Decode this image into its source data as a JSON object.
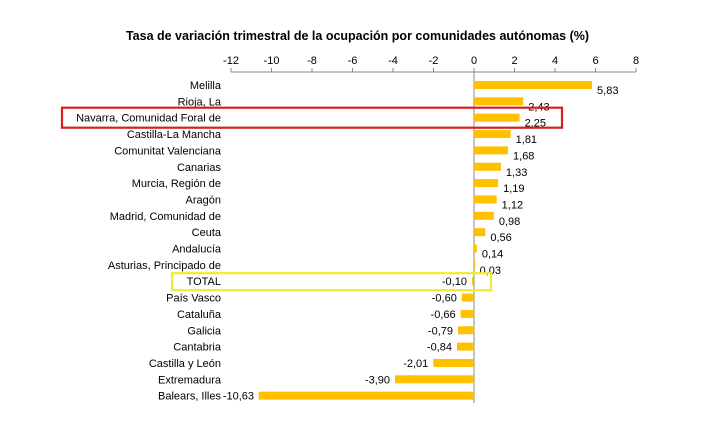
{
  "chart_data": {
    "type": "bar",
    "orientation": "horizontal",
    "title": "Tasa de variación trimestral de la ocupación por comunidades autónomas (%)",
    "xlabel": "",
    "ylabel": "",
    "xlim": [
      -12,
      8
    ],
    "x_ticks": [
      "-12",
      "-10",
      "-8",
      "-6",
      "-4",
      "-2",
      "0",
      "2",
      "4",
      "6",
      "8"
    ],
    "x_axis_position": "top",
    "grid": false,
    "legend": "none",
    "bar_color": "#FFC000",
    "categories": [
      "Melilla",
      "Rioja, La",
      "Navarra, Comunidad Foral de",
      "Castilla-La Mancha",
      "Comunitat Valenciana",
      "Canarias",
      "Murcia, Región de",
      "Aragón",
      "Madrid, Comunidad de",
      "Ceuta",
      "Andalucía",
      "Asturias, Principado de",
      "TOTAL",
      "País Vasco",
      "Cataluña",
      "Galicia",
      "Cantabria",
      "Castilla y León",
      "Extremadura",
      "Balears, Illes"
    ],
    "values": [
      5.83,
      2.43,
      2.25,
      1.81,
      1.68,
      1.33,
      1.19,
      1.12,
      0.98,
      0.56,
      0.14,
      0.03,
      -0.1,
      -0.6,
      -0.66,
      -0.79,
      -0.84,
      -2.01,
      -3.9,
      -10.63
    ],
    "data_labels": [
      "5,83",
      "2,43",
      "2,25",
      "1,81",
      "1,68",
      "1,33",
      "1,19",
      "1,12",
      "0,98",
      "0,56",
      "0,14",
      "0,03",
      "-0,10",
      "-0,60",
      "-0,66",
      "-0,79",
      "-0,84",
      "-2,01",
      "-3,90",
      "-10,63"
    ],
    "highlights": [
      {
        "category": "Navarra, Comunidad Foral de",
        "color": "#D42020"
      },
      {
        "category": "TOTAL",
        "color": "#F2EA2E"
      }
    ]
  }
}
